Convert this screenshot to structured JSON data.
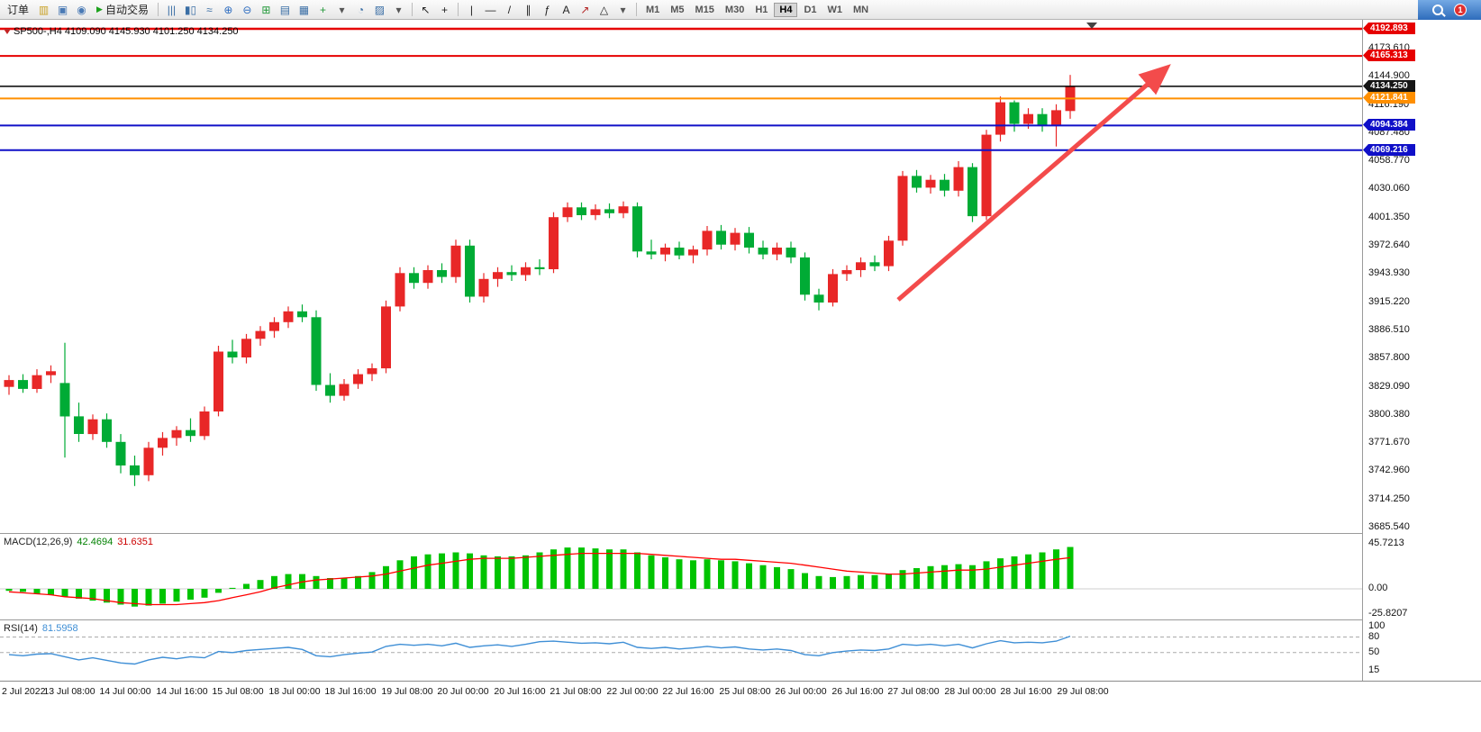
{
  "toolbar": {
    "items": [
      {
        "type": "button",
        "name": "order-button",
        "label": "订单"
      },
      {
        "type": "icon",
        "name": "new-order-icon",
        "glyph": "▥",
        "color": "#c9a227"
      },
      {
        "type": "icon",
        "name": "chart-window-icon",
        "glyph": "▣",
        "color": "#4a7ab5"
      },
      {
        "type": "icon",
        "name": "community-icon",
        "glyph": "◉",
        "color": "#4a7ab5"
      },
      {
        "type": "button",
        "name": "autotrading-button",
        "label": "自动交易",
        "glyph": "▶",
        "glyph_color": "#1ba11b"
      },
      {
        "type": "sep"
      },
      {
        "type": "icon",
        "name": "bar-chart-icon",
        "glyph": "|||",
        "color": "#3a6ea5"
      },
      {
        "type": "icon",
        "name": "candlestick-chart-icon",
        "glyph": "▮▯",
        "color": "#3a6ea5"
      },
      {
        "type": "icon",
        "name": "line-chart-icon",
        "glyph": "≈",
        "color": "#3a6ea5"
      },
      {
        "type": "icon",
        "name": "zoom-in-icon",
        "glyph": "⊕",
        "color": "#2d6cc0"
      },
      {
        "type": "icon",
        "name": "zoom-out-icon",
        "glyph": "⊖",
        "color": "#2d6cc0"
      },
      {
        "type": "icon",
        "name": "tile-windows-icon",
        "glyph": "⊞",
        "color": "#23993a"
      },
      {
        "type": "icon",
        "name": "cascade-windows-icon",
        "glyph": "▤",
        "color": "#3a6ea5"
      },
      {
        "type": "icon",
        "name": "auto-arrange-icon",
        "glyph": "▦",
        "color": "#3a6ea5"
      },
      {
        "type": "icon",
        "name": "indicators-icon",
        "glyph": "+",
        "color": "#23993a"
      },
      {
        "type": "icon",
        "name": "indicators-caret-icon",
        "glyph": "▾",
        "color": "#555555"
      },
      {
        "type": "icon",
        "name": "timeframes-icon",
        "glyph": "◔",
        "color": "#3a6ea5"
      },
      {
        "type": "icon",
        "name": "templates-icon",
        "glyph": "▨",
        "color": "#3a6ea5"
      },
      {
        "type": "icon",
        "name": "templates-caret-icon",
        "glyph": "▾",
        "color": "#555555"
      },
      {
        "type": "sep"
      },
      {
        "type": "icon",
        "name": "cursor-icon",
        "glyph": "↖",
        "color": "#222222"
      },
      {
        "type": "icon",
        "name": "crosshair-icon",
        "glyph": "+",
        "color": "#222222"
      },
      {
        "type": "sep"
      },
      {
        "type": "icon",
        "name": "vertical-line-icon",
        "glyph": "|",
        "color": "#222222"
      },
      {
        "type": "icon",
        "name": "horizontal-line-icon",
        "glyph": "—",
        "color": "#222222"
      },
      {
        "type": "icon",
        "name": "trendline-icon",
        "glyph": "/",
        "color": "#222222"
      },
      {
        "type": "icon",
        "name": "equidistant-channel-icon",
        "glyph": "∥",
        "color": "#222222"
      },
      {
        "type": "icon",
        "name": "fibonacci-icon",
        "glyph": "ƒ",
        "color": "#222222"
      },
      {
        "type": "icon",
        "name": "text-label-icon",
        "glyph": "A",
        "color": "#222222"
      },
      {
        "type": "icon",
        "name": "arrows-icon",
        "glyph": "↗",
        "color": "#b22222"
      },
      {
        "type": "icon",
        "name": "shapes-icon",
        "glyph": "△",
        "color": "#222222"
      },
      {
        "type": "icon",
        "name": "shapes-caret-icon",
        "glyph": "▾",
        "color": "#555555"
      },
      {
        "type": "sep"
      }
    ],
    "timeframes": [
      "M1",
      "M5",
      "M15",
      "M30",
      "H1",
      "H4",
      "D1",
      "W1",
      "MN"
    ],
    "active_timeframe": "H4",
    "notification_count": "1"
  },
  "chart": {
    "symbol_ohlc_label": "SP500-,H4 4109.090 4145.930 4101.250 4134.250"
  },
  "macd": {
    "name": "MACD(12,26,9)",
    "main_value": "42.4694",
    "signal_value": "31.6351"
  },
  "rsi": {
    "name": "RSI(14)",
    "value": "81.5958"
  },
  "colors": {
    "candle_up": "#e82727",
    "candle_down": "#00ab35",
    "macd_bar": "#00c400",
    "macd_signal": "#ff0000",
    "rsi_line": "#3f8fd6",
    "arrow": "#f34b4b"
  },
  "chart_data": [
    {
      "type": "candlestick",
      "symbol": "SP500-",
      "timeframe": "H4",
      "last_ohlc": {
        "open": 4109.09,
        "high": 4145.93,
        "low": 4101.25,
        "close": 4134.25
      },
      "ylim": [
        3682,
        4196
      ],
      "price_axis": [
        "4173.610",
        "4144.900",
        "4116.190",
        "4087.480",
        "4058.770",
        "4030.060",
        "4001.350",
        "3972.640",
        "3943.930",
        "3915.220",
        "3886.510",
        "3857.800",
        "3829.090",
        "3800.380",
        "3771.670",
        "3742.960",
        "3714.250",
        "3685.540"
      ],
      "x_labels": [
        "2 Jul 2022",
        "13 Jul 08:00",
        "14 Jul 00:00",
        "14 Jul 16:00",
        "15 Jul 08:00",
        "18 Jul 00:00",
        "18 Jul 16:00",
        "19 Jul 08:00",
        "20 Jul 00:00",
        "20 Jul 16:00",
        "21 Jul 08:00",
        "22 Jul 00:00",
        "22 Jul 16:00",
        "25 Jul 08:00",
        "26 Jul 00:00",
        "26 Jul 16:00",
        "27 Jul 08:00",
        "28 Jul 00:00",
        "28 Jul 16:00",
        "29 Jul 08:00"
      ],
      "levels": [
        {
          "label": "4192.893",
          "price": 4192.893,
          "color": "#e60000",
          "badge_bg": "#e60000",
          "line_width": 2.4
        },
        {
          "label": "4165.313",
          "price": 4165.313,
          "color": "#e60000",
          "badge_bg": "#e60000",
          "line_width": 2
        },
        {
          "label": "4134.250",
          "price": 4134.25,
          "color": "#000000",
          "badge_bg": "#151515",
          "line_width": 1.5
        },
        {
          "label": "4121.841",
          "price": 4121.841,
          "color": "#ff8f00",
          "badge_bg": "#ff8f00",
          "line_width": 2
        },
        {
          "label": "4094.384",
          "price": 4094.384,
          "color": "#1010c8",
          "badge_bg": "#1010c8",
          "line_width": 2
        },
        {
          "label": "4069.216",
          "price": 4069.216,
          "color": "#1010c8",
          "badge_bg": "#1010c8",
          "line_width": 2
        }
      ],
      "candles": [
        [
          3828,
          3840,
          3820,
          3835
        ],
        [
          3835,
          3841,
          3822,
          3826
        ],
        [
          3826,
          3846,
          3822,
          3840
        ],
        [
          3840,
          3850,
          3832,
          3844
        ],
        [
          3832,
          3873,
          3756,
          3798
        ],
        [
          3798,
          3812,
          3772,
          3780
        ],
        [
          3780,
          3800,
          3774,
          3795
        ],
        [
          3795,
          3801,
          3766,
          3772
        ],
        [
          3772,
          3780,
          3740,
          3748
        ],
        [
          3748,
          3758,
          3727,
          3738
        ],
        [
          3738,
          3772,
          3732,
          3766
        ],
        [
          3766,
          3782,
          3758,
          3776
        ],
        [
          3776,
          3788,
          3768,
          3784
        ],
        [
          3784,
          3796,
          3772,
          3778
        ],
        [
          3778,
          3808,
          3774,
          3803
        ],
        [
          3803,
          3870,
          3798,
          3864
        ],
        [
          3864,
          3876,
          3852,
          3858
        ],
        [
          3858,
          3882,
          3852,
          3877
        ],
        [
          3877,
          3890,
          3870,
          3885
        ],
        [
          3885,
          3899,
          3878,
          3894
        ],
        [
          3894,
          3910,
          3888,
          3905
        ],
        [
          3905,
          3912,
          3894,
          3899
        ],
        [
          3899,
          3906,
          3824,
          3830
        ],
        [
          3830,
          3842,
          3812,
          3819
        ],
        [
          3819,
          3836,
          3814,
          3831
        ],
        [
          3831,
          3846,
          3826,
          3841
        ],
        [
          3841,
          3852,
          3834,
          3847
        ],
        [
          3847,
          3916,
          3842,
          3910
        ],
        [
          3910,
          3950,
          3905,
          3944
        ],
        [
          3944,
          3950,
          3928,
          3934
        ],
        [
          3934,
          3952,
          3928,
          3947
        ],
        [
          3947,
          3954,
          3934,
          3940
        ],
        [
          3940,
          3978,
          3934,
          3972
        ],
        [
          3972,
          3978,
          3914,
          3920
        ],
        [
          3920,
          3944,
          3914,
          3938
        ],
        [
          3938,
          3950,
          3930,
          3945
        ],
        [
          3945,
          3952,
          3936,
          3942
        ],
        [
          3942,
          3955,
          3936,
          3950
        ],
        [
          3950,
          3958,
          3942,
          3948
        ],
        [
          3948,
          4006,
          3944,
          4001
        ],
        [
          4001,
          4016,
          3996,
          4011
        ],
        [
          4011,
          4016,
          3998,
          4003
        ],
        [
          4003,
          4014,
          3998,
          4009
        ],
        [
          4009,
          4015,
          4000,
          4005
        ],
        [
          4005,
          4017,
          4000,
          4012
        ],
        [
          4012,
          4016,
          3960,
          3966
        ],
        [
          3966,
          3978,
          3958,
          3963
        ],
        [
          3963,
          3974,
          3956,
          3970
        ],
        [
          3970,
          3976,
          3958,
          3962
        ],
        [
          3962,
          3972,
          3954,
          3968
        ],
        [
          3968,
          3992,
          3962,
          3987
        ],
        [
          3987,
          3993,
          3968,
          3973
        ],
        [
          3973,
          3990,
          3967,
          3985
        ],
        [
          3985,
          3991,
          3964,
          3970
        ],
        [
          3970,
          3977,
          3958,
          3963
        ],
        [
          3963,
          3975,
          3957,
          3970
        ],
        [
          3970,
          3976,
          3954,
          3960
        ],
        [
          3960,
          3965,
          3916,
          3922
        ],
        [
          3922,
          3928,
          3906,
          3914
        ],
        [
          3914,
          3948,
          3910,
          3943
        ],
        [
          3943,
          3952,
          3936,
          3947
        ],
        [
          3947,
          3960,
          3940,
          3955
        ],
        [
          3955,
          3962,
          3946,
          3951
        ],
        [
          3951,
          3982,
          3946,
          3977
        ],
        [
          3977,
          4048,
          3972,
          4043
        ],
        [
          4043,
          4049,
          4026,
          4031
        ],
        [
          4031,
          4044,
          4025,
          4039
        ],
        [
          4039,
          4045,
          4022,
          4028
        ],
        [
          4028,
          4058,
          4022,
          4052
        ],
        [
          4052,
          4056,
          3996,
          4002
        ],
        [
          4002,
          4090,
          3998,
          4085
        ],
        [
          4085,
          4124,
          4078,
          4118
        ],
        [
          4118,
          4120,
          4088,
          4096
        ],
        [
          4096,
          4112,
          4091,
          4106
        ],
        [
          4106,
          4112,
          4088,
          4094
        ],
        [
          4094,
          4116,
          4073,
          4110
        ],
        [
          4109.09,
          4145.93,
          4101.25,
          4134.25
        ]
      ]
    },
    {
      "type": "bar",
      "name": "MACD(12,26,9)",
      "current_macd": 42.4694,
      "current_signal": 31.6351,
      "axis": [
        "45.7213",
        "0.00",
        "-25.8207"
      ],
      "histogram": [
        -2,
        -3,
        -5,
        -6,
        -8,
        -10,
        -12,
        -14,
        -16,
        -18,
        -17,
        -15,
        -13,
        -11,
        -9,
        -4,
        1,
        5,
        9,
        13,
        15,
        15,
        13,
        11,
        11,
        13,
        17,
        23,
        29,
        33,
        35,
        36,
        37,
        36,
        34,
        33,
        33,
        34,
        37,
        40,
        42,
        42,
        41,
        40,
        40,
        37,
        34,
        32,
        30,
        29,
        30,
        29,
        28,
        26,
        24,
        22,
        20,
        16,
        13,
        12,
        13,
        14,
        14,
        15,
        19,
        21,
        23,
        24,
        25,
        24,
        28,
        31,
        33,
        35,
        37,
        40,
        42.47
      ],
      "signal": [
        -3,
        -4,
        -5,
        -6,
        -8,
        -9,
        -10,
        -12,
        -14,
        -15,
        -16,
        -16,
        -16,
        -15,
        -14,
        -12,
        -9,
        -6,
        -3,
        1,
        4,
        7,
        9,
        10,
        11,
        12,
        13,
        15,
        18,
        21,
        24,
        26,
        28,
        30,
        31,
        31,
        31,
        32,
        33,
        34,
        35,
        36,
        36,
        36,
        36,
        36,
        35,
        34,
        33,
        32,
        31,
        30,
        30,
        29,
        28,
        27,
        26,
        24,
        22,
        20,
        18,
        17,
        16,
        15,
        15,
        16,
        17,
        18,
        19,
        19,
        20,
        22,
        24,
        26,
        28,
        30,
        31.64
      ]
    },
    {
      "type": "line",
      "name": "RSI(14)",
      "current": 81.5958,
      "axis": [
        "100",
        "80",
        "50",
        "15"
      ],
      "levels": [
        80,
        50
      ],
      "values": [
        46,
        44,
        47,
        48,
        42,
        36,
        40,
        35,
        30,
        28,
        36,
        41,
        38,
        42,
        40,
        52,
        50,
        54,
        56,
        58,
        60,
        56,
        44,
        42,
        46,
        49,
        51,
        62,
        66,
        64,
        66,
        63,
        68,
        60,
        63,
        65,
        62,
        66,
        71,
        72,
        70,
        68,
        69,
        67,
        70,
        60,
        58,
        60,
        57,
        59,
        62,
        59,
        61,
        57,
        55,
        57,
        54,
        46,
        44,
        50,
        53,
        55,
        54,
        57,
        66,
        64,
        66,
        63,
        66,
        59,
        67,
        73,
        69,
        70,
        69,
        72,
        81.6
      ]
    }
  ]
}
